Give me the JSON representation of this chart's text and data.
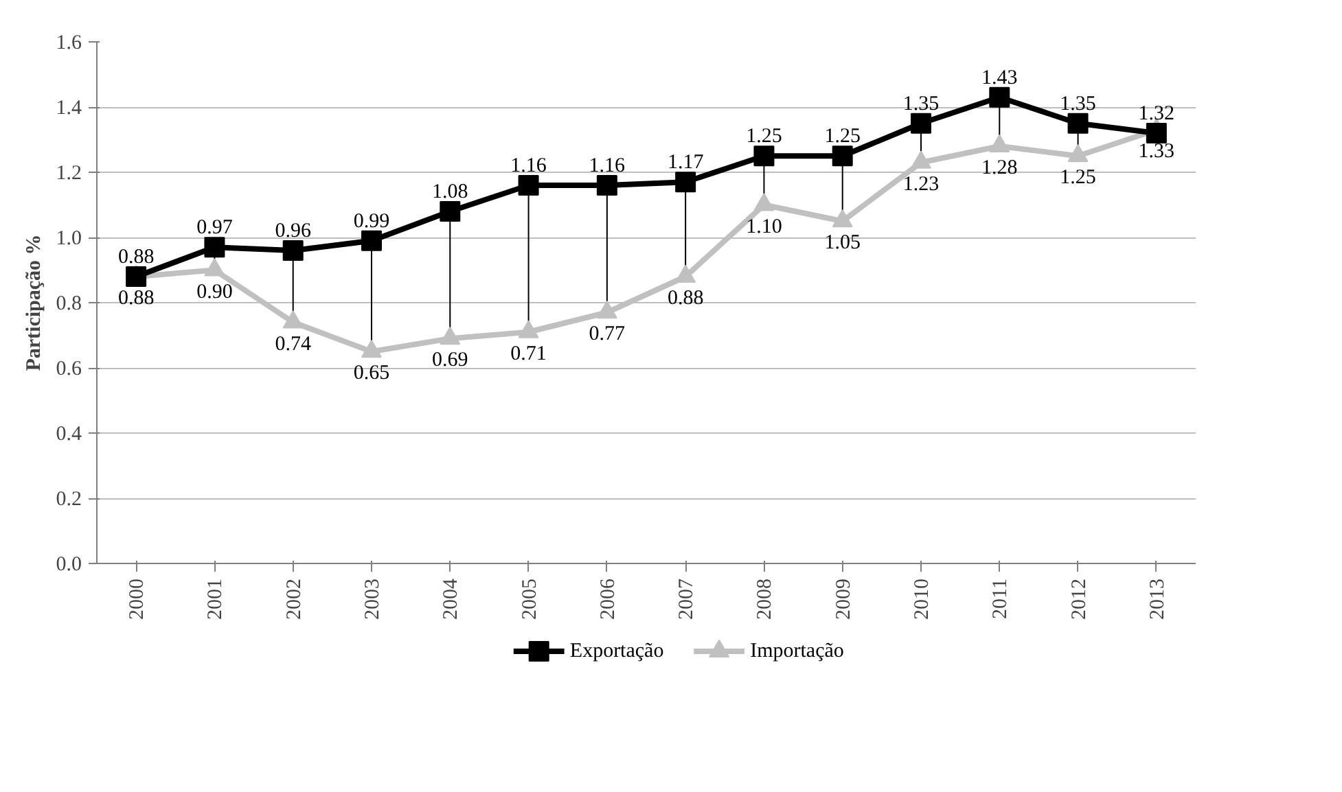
{
  "chart_data": {
    "type": "line",
    "ylabel": "Participação %",
    "categories": [
      "2000",
      "2001",
      "2002",
      "2003",
      "2004",
      "2005",
      "2006",
      "2007",
      "2008",
      "2009",
      "2010",
      "2011",
      "2012",
      "2013"
    ],
    "series": [
      {
        "name": "Exportação",
        "color": "#000000",
        "marker": "square",
        "values": [
          0.88,
          0.97,
          0.96,
          0.99,
          1.08,
          1.16,
          1.16,
          1.17,
          1.25,
          1.25,
          1.35,
          1.43,
          1.35,
          1.32
        ],
        "value_labels": [
          "0.88",
          "0.97",
          "0.96",
          "0.99",
          "1.08",
          "1.16",
          "1.16",
          "1.17",
          "1.25",
          "1.25",
          "1.35",
          "1.43",
          "1.35",
          "1.32"
        ]
      },
      {
        "name": "Importação",
        "color": "#c0c0c0",
        "marker": "triangle",
        "values": [
          0.88,
          0.9,
          0.74,
          0.65,
          0.69,
          0.71,
          0.77,
          0.88,
          1.1,
          1.05,
          1.23,
          1.28,
          1.25,
          1.33
        ],
        "value_labels": [
          "0.88",
          "0.90",
          "0.74",
          "0.65",
          "0.69",
          "0.71",
          "0.77",
          "0.88",
          "1.10",
          "1.05",
          "1.23",
          "1.28",
          "1.25",
          "1.33"
        ]
      }
    ],
    "ylim": [
      0,
      1.6
    ],
    "yticks": [
      {
        "value": 0,
        "label": "0.0"
      },
      0.2,
      0.4,
      0.6,
      0.8,
      {
        "value": 1,
        "label": "1.0"
      },
      1.2,
      1.4,
      1.6
    ],
    "grid": "y",
    "legend": "bottom"
  }
}
